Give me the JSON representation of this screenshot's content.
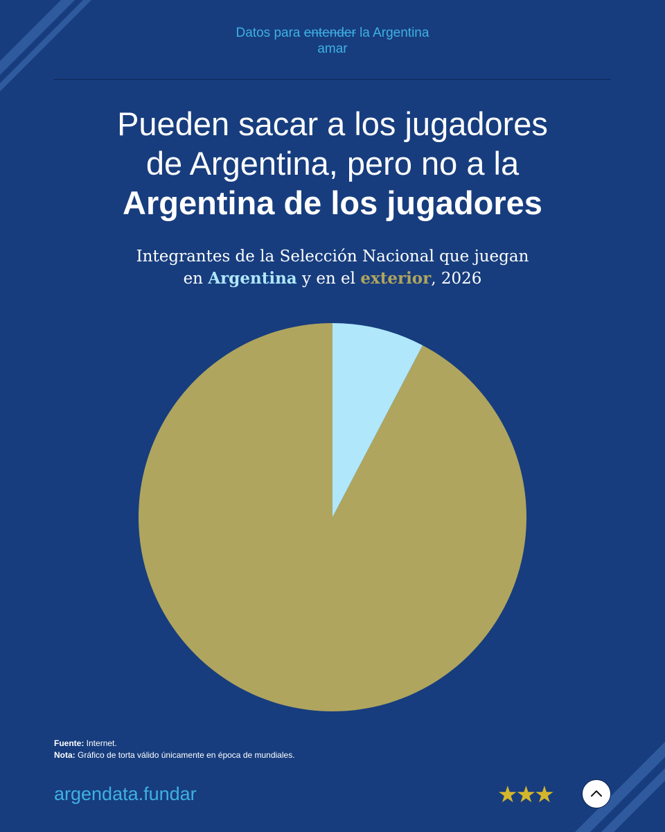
{
  "tagline": {
    "prefix": "Datos para ",
    "struck": "entender",
    "suffix": " la Argentina",
    "replacement": "amar"
  },
  "headline": {
    "line1": "Pueden sacar a los jugadores",
    "line2": "de Argentina, pero no a la",
    "line3_bold": "Argentina de los jugadores"
  },
  "subtitle": {
    "line1": "Integrantes de la Selección Nacional que juegan",
    "pre": "en ",
    "highlight1": "Argentina",
    "mid": " y en el ",
    "highlight2": "exterior",
    "post": ", 2026"
  },
  "chart_data": {
    "type": "pie",
    "categories": [
      "Argentina",
      "exterior"
    ],
    "values": [
      2,
      24
    ],
    "colors": [
      "#b0e7fb",
      "#b0a55e"
    ],
    "start": "12 o'clock, clockwise"
  },
  "notes": {
    "fuente_label": "Fuente:",
    "fuente_text": " Internet.",
    "nota_label": "Nota:",
    "nota_text": " Gráfico de torta válido únicamente en época de mundiales."
  },
  "footer": {
    "brand": "argendata.fundar",
    "stars": "★★★",
    "up_button_icon": "chevron-up-icon"
  },
  "colors": {
    "background": "#173d7e",
    "accent_blue": "#3fb0e3",
    "argentina": "#b0e7fb",
    "exterior": "#b0a55e",
    "stars": "#d4b62c"
  }
}
